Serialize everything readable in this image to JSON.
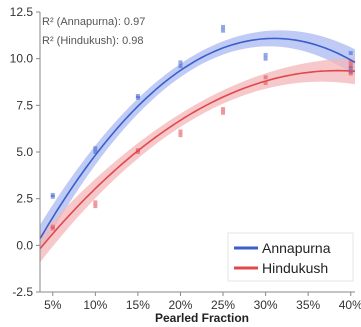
{
  "chart_data": {
    "type": "scatter",
    "title": "",
    "xlabel": "Pearled Fraction",
    "ylabel": "",
    "xlim": [
      3.5,
      40.5
    ],
    "ylim": [
      -2.5,
      12.5
    ],
    "x_ticks": [
      5,
      10,
      15,
      20,
      25,
      30,
      35,
      40
    ],
    "x_tick_labels": [
      "5%",
      "10%",
      "15%",
      "20%",
      "25%",
      "30%",
      "35%",
      "40%"
    ],
    "y_ticks": [
      -2.5,
      0.0,
      2.5,
      5.0,
      7.5,
      10.0,
      12.5
    ],
    "y_tick_labels": [
      "-2.5",
      "0.0",
      "2.5",
      "5.0",
      "7.5",
      "10.0",
      "12.5"
    ],
    "grid": false,
    "legend_position": "bottom-right",
    "annotations": [
      "R² (Annapurna): 0.97",
      "R² (Hindukush): 0.98"
    ],
    "series": [
      {
        "name": "Annapurna",
        "color": "#3a5fcd",
        "band_color": "#aab9f2",
        "points": [
          [
            5,
            2.6
          ],
          [
            5,
            2.7
          ],
          [
            10,
            5.0
          ],
          [
            10,
            5.2
          ],
          [
            15,
            7.9
          ],
          [
            15,
            8.0
          ],
          [
            20,
            9.6
          ],
          [
            20,
            9.8
          ],
          [
            25,
            11.5
          ],
          [
            25,
            11.7
          ],
          [
            30,
            10.0
          ],
          [
            30,
            10.2
          ],
          [
            40,
            9.3
          ],
          [
            40,
            9.5
          ],
          [
            40,
            10.3
          ]
        ],
        "fit": {
          "degree": 2,
          "coefficients": [
            -2.55,
            0.88,
            -0.0142
          ]
        }
      },
      {
        "name": "Hindukush",
        "color": "#e0484f",
        "band_color": "#f4b5b7",
        "points": [
          [
            5,
            0.9
          ],
          [
            5,
            1.0
          ],
          [
            10,
            2.1
          ],
          [
            10,
            2.3
          ],
          [
            15,
            5.0
          ],
          [
            15,
            5.1
          ],
          [
            20,
            5.9
          ],
          [
            20,
            6.1
          ],
          [
            25,
            7.1
          ],
          [
            25,
            7.3
          ],
          [
            30,
            8.7
          ],
          [
            30,
            9.0
          ],
          [
            40,
            9.2
          ],
          [
            40,
            9.6
          ],
          [
            40,
            9.8
          ]
        ],
        "fit": {
          "degree": 2,
          "coefficients": [
            -2.18,
            0.6,
            -0.0078
          ]
        }
      }
    ]
  }
}
